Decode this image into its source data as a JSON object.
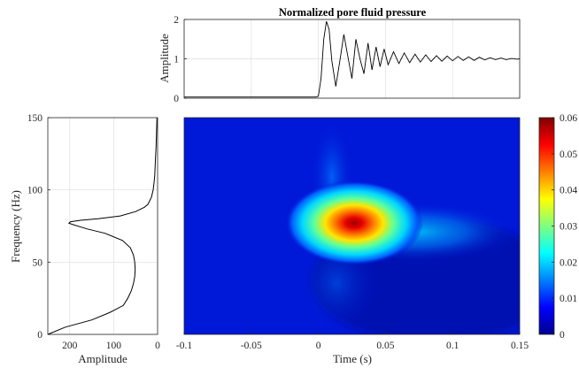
{
  "chart_data": [
    {
      "id": "waveform",
      "type": "line",
      "title": "Normalized pore fluid pressure",
      "xlabel": "",
      "ylabel": "Amplitude",
      "xlim": [
        -0.1,
        0.15
      ],
      "ylim": [
        0,
        2
      ],
      "yticks": [
        0,
        1,
        2
      ],
      "grid": true,
      "series": [
        {
          "x": [
            -0.1,
            -0.05,
            -0.002,
            0.0,
            0.002,
            0.004,
            0.006,
            0.008,
            0.01,
            0.013,
            0.016,
            0.019,
            0.022,
            0.025,
            0.028,
            0.031,
            0.034,
            0.037,
            0.04,
            0.043,
            0.046,
            0.049,
            0.052,
            0.056,
            0.06,
            0.064,
            0.068,
            0.072,
            0.076,
            0.08,
            0.084,
            0.088,
            0.092,
            0.096,
            0.1,
            0.104,
            0.108,
            0.112,
            0.116,
            0.12,
            0.124,
            0.128,
            0.132,
            0.136,
            0.14,
            0.144,
            0.148,
            0.15
          ],
          "y": [
            0.03,
            0.03,
            0.03,
            0.05,
            0.5,
            1.5,
            1.95,
            1.75,
            0.95,
            0.3,
            0.95,
            1.62,
            1.05,
            0.5,
            1.5,
            1.0,
            0.62,
            1.4,
            0.72,
            1.3,
            0.8,
            1.25,
            0.85,
            1.18,
            0.88,
            1.15,
            0.9,
            1.12,
            0.92,
            1.1,
            0.93,
            1.08,
            0.94,
            1.07,
            0.95,
            1.06,
            0.96,
            1.05,
            0.96,
            1.04,
            0.97,
            1.03,
            0.98,
            1.02,
            0.98,
            1.01,
            0.99,
            1.0
          ]
        }
      ]
    },
    {
      "id": "spectrum",
      "type": "line",
      "xlabel": "Amplitude",
      "ylabel": "Frequency (Hz)",
      "xlim": [
        250,
        0
      ],
      "xdir": "reverse",
      "xticks": [
        200,
        100,
        0
      ],
      "ylim": [
        0,
        150
      ],
      "yticks": [
        0,
        50,
        100,
        150
      ],
      "grid": true,
      "series": [
        {
          "freq": [
            0,
            5,
            10,
            15,
            20,
            25,
            30,
            35,
            40,
            45,
            50,
            55,
            60,
            65,
            70,
            73,
            76,
            77,
            78,
            79,
            80,
            82,
            85,
            88,
            90,
            95,
            100,
            105,
            110,
            120,
            130,
            140,
            150
          ],
          "amp": [
            250,
            210,
            150,
            110,
            78,
            68,
            60,
            55,
            52,
            51,
            52,
            55,
            62,
            80,
            120,
            160,
            193,
            202,
            198,
            175,
            135,
            85,
            50,
            30,
            22,
            14,
            10,
            8,
            6.5,
            5,
            3.5,
            2.5,
            1.5
          ]
        }
      ]
    },
    {
      "id": "scalogram",
      "type": "heatmap",
      "xlabel": "Time (s)",
      "ylabel": "",
      "xlim": [
        -0.1,
        0.15
      ],
      "xticks": [
        -0.1,
        -0.05,
        0.0,
        0.05,
        0.1,
        0.15
      ],
      "ylim": [
        0,
        150
      ],
      "colormap": "jet",
      "clim": [
        0,
        0.06
      ],
      "colorbar_ticks": [
        0,
        0.01,
        0.02,
        0.03,
        0.04,
        0.05,
        0.06
      ],
      "peak": {
        "time": 0.02,
        "freq": 77,
        "value": 0.06
      }
    }
  ]
}
